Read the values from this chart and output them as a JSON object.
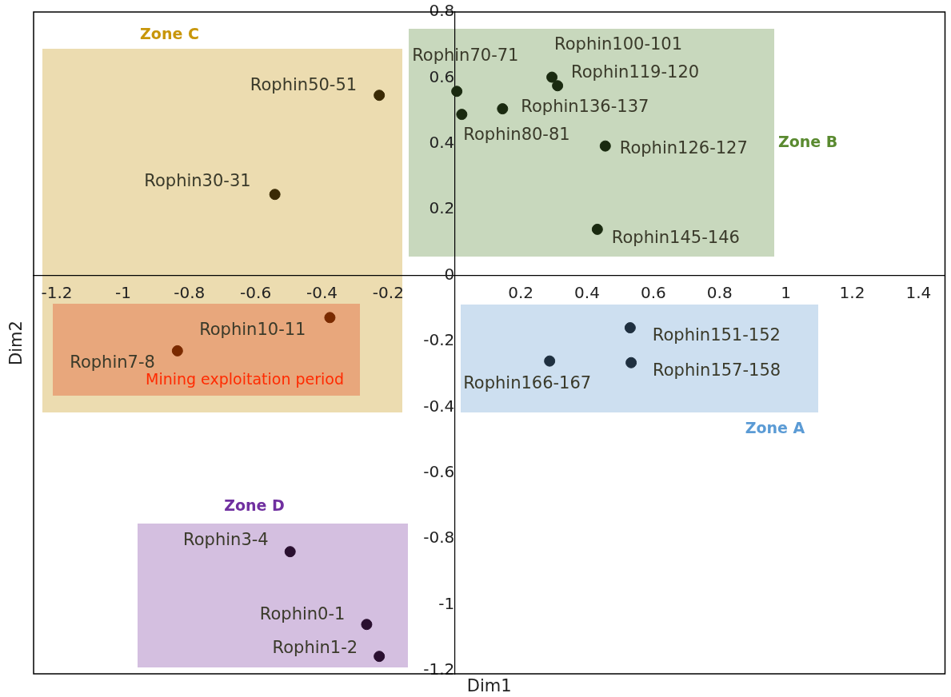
{
  "chart_data": {
    "type": "scatter",
    "xlabel": "Dim1",
    "ylabel": "Dim2",
    "x": [
      -0.227,
      -0.542,
      -0.376,
      -0.836,
      0.007,
      0.022,
      0.145,
      0.294,
      0.311,
      0.455,
      0.431,
      0.53,
      0.533,
      0.287,
      -0.496,
      -0.265,
      -0.227
    ],
    "values": [
      0.547,
      0.246,
      -0.128,
      -0.229,
      0.559,
      0.489,
      0.506,
      0.602,
      0.576,
      0.393,
      0.14,
      -0.159,
      -0.265,
      -0.26,
      -0.839,
      -1.06,
      -1.157
    ],
    "colors": [
      "#3a2a05",
      "#3a2a05",
      "#7a2a00",
      "#7a2a00",
      "#1a2a10",
      "#1a2a10",
      "#1a2a10",
      "#1a2a10",
      "#1a2a10",
      "#1a2a10",
      "#1a2a10",
      "#1f3040",
      "#1f3040",
      "#1f3040",
      "#2a1030",
      "#2a1030",
      "#2a1030"
    ],
    "marker": "circle",
    "xlim": [
      -1.27,
      1.48
    ],
    "ylim": [
      -1.21,
      0.8
    ],
    "xticks": [
      -1.2,
      -1,
      -0.8,
      -0.6,
      -0.4,
      -0.2,
      0.2,
      0.4,
      0.6,
      0.8,
      1,
      1.2,
      1.4
    ],
    "yticks": [
      -1.2,
      -1,
      -0.8,
      -0.6,
      -0.4,
      -0.2,
      0,
      0.2,
      0.4,
      0.6,
      0.8
    ],
    "annotations": [
      "Zone C",
      "Zone B",
      "Mining exploitation period",
      "Zone A",
      "Zone D",
      {
        "text": "Rophin50-51",
        "x": -0.227,
        "y": 0.547
      },
      {
        "text": "Rophin30-31",
        "x": -0.542,
        "y": 0.246
      },
      {
        "text": "Rophin10-11",
        "x": -0.376,
        "y": -0.128
      },
      {
        "text": "Rophin7-8",
        "x": -0.836,
        "y": -0.229
      },
      {
        "text": "Rophin70-71",
        "x": 0.007,
        "y": 0.559
      },
      {
        "text": "Rophin80-81",
        "x": 0.022,
        "y": 0.489
      },
      {
        "text": "Rophin136-137",
        "x": 0.145,
        "y": 0.506
      },
      {
        "text": "Rophin100-101",
        "x": 0.294,
        "y": 0.602
      },
      {
        "text": "Rophin119-120",
        "x": 0.311,
        "y": 0.576
      },
      {
        "text": "Rophin126-127",
        "x": 0.455,
        "y": 0.393
      },
      {
        "text": "Rophin145-146",
        "x": 0.431,
        "y": 0.14
      },
      {
        "text": "Rophin151-152",
        "x": 0.53,
        "y": -0.159
      },
      {
        "text": "Rophin157-158",
        "x": 0.533,
        "y": -0.265
      },
      {
        "text": "Rophin166-167",
        "x": 0.287,
        "y": -0.26
      },
      {
        "text": "Rophin3-4",
        "x": -0.496,
        "y": -0.839
      },
      {
        "text": "Rophin0-1",
        "x": -0.265,
        "y": -1.06
      },
      {
        "text": "Rophin1-2",
        "x": -0.227,
        "y": -1.157
      }
    ]
  }
}
